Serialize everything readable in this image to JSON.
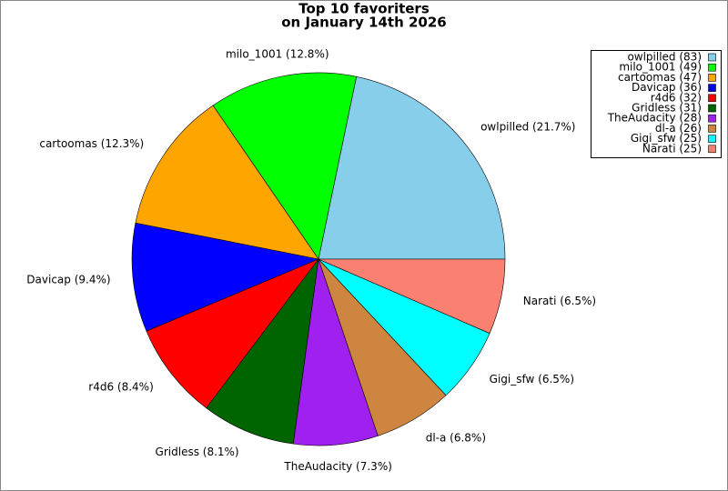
{
  "chart_data": {
    "type": "pie",
    "title": "Top 10 favoriters",
    "subtitle": "on January 14th 2026",
    "categories": [
      "owlpilled",
      "milo_1001",
      "cartoomas",
      "Davicap",
      "r4d6",
      "Gridless",
      "TheAudacity",
      "dl-a",
      "Gigi_sfw",
      "Narati"
    ],
    "values": [
      21.7,
      12.8,
      12.3,
      9.4,
      8.4,
      8.1,
      7.3,
      6.8,
      6.5,
      6.5
    ],
    "value_labels": [
      "owlpilled (21.7%)",
      "milo_1001 (12.8%)",
      "cartoomas (12.3%)",
      "Davicap (9.4%)",
      "r4d6 (8.4%)",
      "Gridless (8.1%)",
      "TheAudacity (7.3%)",
      "dl-a (6.8%)",
      "Gigi_sfw (6.5%)",
      "Narati (6.5%)"
    ],
    "legend_labels": [
      "owlpilled (83)",
      "milo_1001 (49)",
      "cartoomas (47)",
      "Davicap (36)",
      "r4d6 (32)",
      "Gridless (31)",
      "TheAudacity (28)",
      "dl-a (26)",
      "Gigi_sfw (25)",
      "Narati (25)"
    ],
    "colors": [
      "#87ceeb",
      "#00ff00",
      "#ffa500",
      "#0000ff",
      "#ff0000",
      "#006400",
      "#a020f0",
      "#cd853f",
      "#00ffff",
      "#fa8072"
    ],
    "legend": "upper right"
  }
}
